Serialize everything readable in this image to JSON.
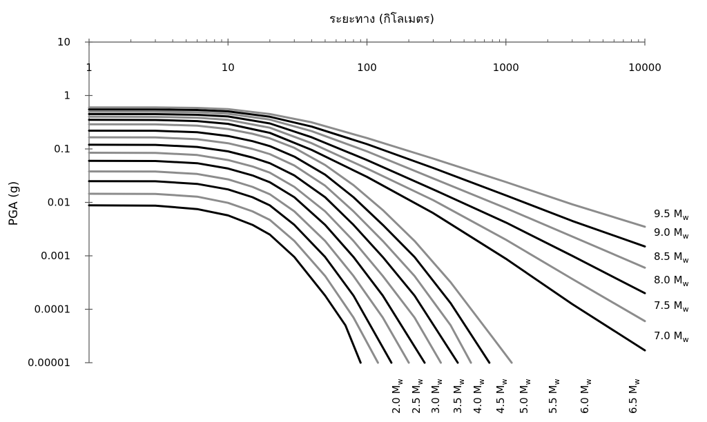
{
  "chart_data": {
    "type": "line",
    "title": "",
    "xlabel": "ระยะทาง (กิโลเมตร)",
    "ylabel": "PGA (g)",
    "x_scale": "log",
    "y_scale": "log",
    "xlim": [
      1,
      10000
    ],
    "ylim": [
      1e-05,
      10
    ],
    "x_ticks": [
      "1",
      "10",
      "100",
      "1000",
      "10000"
    ],
    "y_ticks": [
      "10",
      "1",
      "0.1",
      "0.01",
      "0.001",
      "0.0001",
      "0.00001"
    ],
    "grid": false,
    "x_axis_position": "top",
    "magnitude_unit": "M",
    "magnitude_subscript": "w",
    "series": [
      {
        "name": "2.0",
        "color": "#000000",
        "points": [
          [
            1,
            0.0088
          ],
          [
            3,
            0.0087
          ],
          [
            6,
            0.0075
          ],
          [
            10,
            0.0057
          ],
          [
            15,
            0.0038
          ],
          [
            20,
            0.0025
          ],
          [
            30,
            0.00095
          ],
          [
            50,
            0.00018
          ],
          [
            70,
            5e-05
          ],
          [
            90,
            1e-05
          ]
        ]
      },
      {
        "name": "2.5",
        "color": "#8c8c8c",
        "points": [
          [
            1,
            0.0145
          ],
          [
            3,
            0.0144
          ],
          [
            6,
            0.0128
          ],
          [
            10,
            0.0098
          ],
          [
            15,
            0.0068
          ],
          [
            20,
            0.0047
          ],
          [
            30,
            0.0019
          ],
          [
            50,
            0.00042
          ],
          [
            80,
            7e-05
          ],
          [
            120,
            1e-05
          ]
        ]
      },
      {
        "name": "3.0",
        "color": "#000000",
        "points": [
          [
            1,
            0.025
          ],
          [
            3,
            0.0248
          ],
          [
            6,
            0.0222
          ],
          [
            10,
            0.0175
          ],
          [
            15,
            0.0125
          ],
          [
            20,
            0.0088
          ],
          [
            30,
            0.0038
          ],
          [
            50,
            0.00095
          ],
          [
            80,
            0.00018
          ],
          [
            150,
            1e-05
          ]
        ]
      },
      {
        "name": "3.5",
        "color": "#8c8c8c",
        "points": [
          [
            1,
            0.038
          ],
          [
            3,
            0.0377
          ],
          [
            6,
            0.034
          ],
          [
            10,
            0.027
          ],
          [
            15,
            0.0195
          ],
          [
            20,
            0.0142
          ],
          [
            30,
            0.0068
          ],
          [
            50,
            0.0019
          ],
          [
            80,
            0.00042
          ],
          [
            130,
            7e-05
          ],
          [
            200,
            1e-05
          ]
        ]
      },
      {
        "name": "4.0",
        "color": "#000000",
        "points": [
          [
            1,
            0.06
          ],
          [
            3,
            0.0595
          ],
          [
            6,
            0.054
          ],
          [
            10,
            0.043
          ],
          [
            15,
            0.032
          ],
          [
            20,
            0.0238
          ],
          [
            30,
            0.0125
          ],
          [
            50,
            0.0038
          ],
          [
            80,
            0.00095
          ],
          [
            130,
            0.00018
          ],
          [
            260,
            1e-05
          ]
        ]
      },
      {
        "name": "4.5",
        "color": "#8c8c8c",
        "points": [
          [
            1,
            0.085
          ],
          [
            3,
            0.0845
          ],
          [
            6,
            0.077
          ],
          [
            10,
            0.062
          ],
          [
            15,
            0.047
          ],
          [
            20,
            0.036
          ],
          [
            30,
            0.0195
          ],
          [
            50,
            0.0068
          ],
          [
            80,
            0.0019
          ],
          [
            130,
            0.00042
          ],
          [
            220,
            7e-05
          ],
          [
            340,
            1e-05
          ]
        ]
      },
      {
        "name": "5.0",
        "color": "#000000",
        "points": [
          [
            1,
            0.12
          ],
          [
            3,
            0.119
          ],
          [
            6,
            0.109
          ],
          [
            10,
            0.09
          ],
          [
            15,
            0.069
          ],
          [
            20,
            0.054
          ],
          [
            30,
            0.032
          ],
          [
            50,
            0.0125
          ],
          [
            80,
            0.0038
          ],
          [
            130,
            0.00095
          ],
          [
            220,
            0.00018
          ],
          [
            450,
            1e-05
          ]
        ]
      },
      {
        "name": "5.5",
        "color": "#8c8c8c",
        "points": [
          [
            1,
            0.165
          ],
          [
            3,
            0.164
          ],
          [
            6,
            0.152
          ],
          [
            10,
            0.128
          ],
          [
            15,
            0.1
          ],
          [
            20,
            0.08
          ],
          [
            30,
            0.049
          ],
          [
            50,
            0.0205
          ],
          [
            80,
            0.0068
          ],
          [
            130,
            0.0019
          ],
          [
            220,
            0.00042
          ],
          [
            400,
            5e-05
          ],
          [
            560,
            1e-05
          ]
        ]
      },
      {
        "name": "6.0",
        "color": "#000000",
        "points": [
          [
            1,
            0.22
          ],
          [
            3,
            0.219
          ],
          [
            6,
            0.205
          ],
          [
            10,
            0.175
          ],
          [
            15,
            0.14
          ],
          [
            20,
            0.113
          ],
          [
            30,
            0.072
          ],
          [
            50,
            0.033
          ],
          [
            80,
            0.0125
          ],
          [
            130,
            0.0038
          ],
          [
            220,
            0.00095
          ],
          [
            400,
            0.00013
          ],
          [
            760,
            1e-05
          ]
        ]
      },
      {
        "name": "6.5",
        "color": "#8c8c8c",
        "points": [
          [
            1,
            0.29
          ],
          [
            3,
            0.288
          ],
          [
            6,
            0.272
          ],
          [
            10,
            0.236
          ],
          [
            15,
            0.192
          ],
          [
            20,
            0.158
          ],
          [
            30,
            0.105
          ],
          [
            50,
            0.05
          ],
          [
            80,
            0.021
          ],
          [
            130,
            0.0072
          ],
          [
            220,
            0.0019
          ],
          [
            400,
            0.00032
          ],
          [
            800,
            3e-05
          ],
          [
            1100,
            1e-05
          ]
        ]
      },
      {
        "name": "7.0",
        "color": "#000000",
        "points": [
          [
            1,
            0.35
          ],
          [
            3,
            0.348
          ],
          [
            6,
            0.332
          ],
          [
            10,
            0.295
          ],
          [
            20,
            0.2
          ],
          [
            40,
            0.096
          ],
          [
            100,
            0.03
          ],
          [
            300,
            0.0063
          ],
          [
            1000,
            0.00088
          ],
          [
            3000,
            0.000125
          ],
          [
            10000,
            1.7e-05
          ]
        ]
      },
      {
        "name": "7.5",
        "color": "#8c8c8c",
        "points": [
          [
            1,
            0.4
          ],
          [
            3,
            0.398
          ],
          [
            6,
            0.384
          ],
          [
            10,
            0.35
          ],
          [
            20,
            0.25
          ],
          [
            40,
            0.128
          ],
          [
            100,
            0.043
          ],
          [
            300,
            0.011
          ],
          [
            1000,
            0.002
          ],
          [
            3000,
            0.00037
          ],
          [
            10000,
            6e-05
          ]
        ]
      },
      {
        "name": "8.0",
        "color": "#000000",
        "points": [
          [
            1,
            0.45
          ],
          [
            3,
            0.448
          ],
          [
            6,
            0.435
          ],
          [
            10,
            0.405
          ],
          [
            20,
            0.3
          ],
          [
            40,
            0.165
          ],
          [
            100,
            0.062
          ],
          [
            300,
            0.0175
          ],
          [
            1000,
            0.0042
          ],
          [
            3000,
            0.001
          ],
          [
            10000,
            0.0002
          ]
        ]
      },
      {
        "name": "8.5",
        "color": "#8c8c8c",
        "points": [
          [
            1,
            0.5
          ],
          [
            3,
            0.498
          ],
          [
            6,
            0.486
          ],
          [
            10,
            0.455
          ],
          [
            20,
            0.355
          ],
          [
            40,
            0.215
          ],
          [
            100,
            0.09
          ],
          [
            300,
            0.028
          ],
          [
            1000,
            0.0078
          ],
          [
            3000,
            0.0023
          ],
          [
            10000,
            0.0006
          ]
        ]
      },
      {
        "name": "9.0",
        "color": "#000000",
        "points": [
          [
            1,
            0.55
          ],
          [
            3,
            0.548
          ],
          [
            6,
            0.536
          ],
          [
            10,
            0.505
          ],
          [
            20,
            0.4
          ],
          [
            40,
            0.262
          ],
          [
            100,
            0.123
          ],
          [
            300,
            0.044
          ],
          [
            1000,
            0.0135
          ],
          [
            3000,
            0.0045
          ],
          [
            10000,
            0.0015
          ]
        ]
      },
      {
        "name": "9.5",
        "color": "#8c8c8c",
        "points": [
          [
            1,
            0.6
          ],
          [
            3,
            0.598
          ],
          [
            6,
            0.586
          ],
          [
            10,
            0.555
          ],
          [
            20,
            0.45
          ],
          [
            40,
            0.315
          ],
          [
            100,
            0.16
          ],
          [
            300,
            0.066
          ],
          [
            1000,
            0.024
          ],
          [
            3000,
            0.0092
          ],
          [
            10000,
            0.0035
          ]
        ]
      }
    ]
  }
}
